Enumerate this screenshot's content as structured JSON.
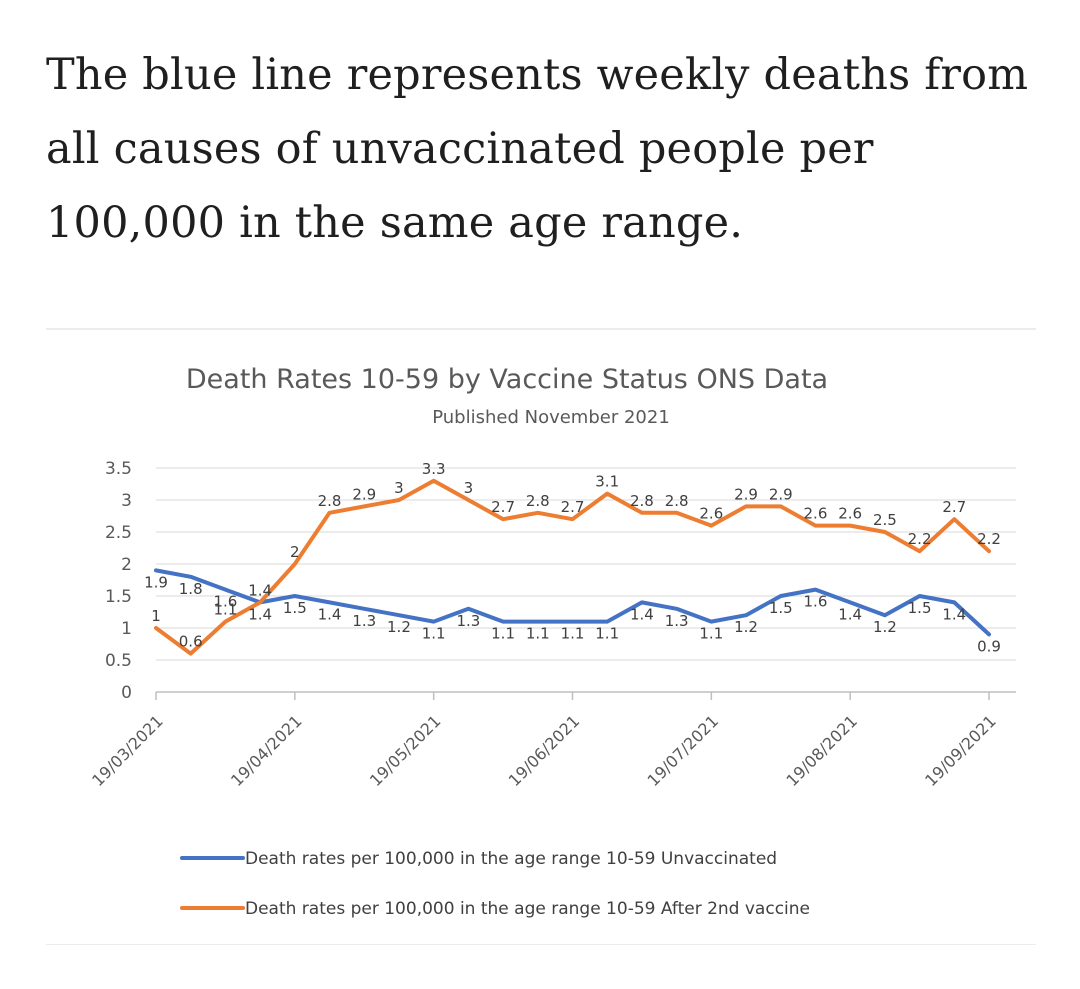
{
  "caption": "The blue line represents weekly deaths from all causes of unvaccinated people per 100,000 in the same age range.",
  "chart_data": {
    "type": "line",
    "title": "Death Rates 10-59  by Vaccine Status ONS Data",
    "subtitle": "Published November 2021",
    "xlabel": "",
    "ylabel": "",
    "ylim": [
      0,
      3.5
    ],
    "grid": true,
    "legend_position": "bottom",
    "y_ticks": [
      "0",
      "0.5",
      "1",
      "1.5",
      "2",
      "2.5",
      "3",
      "3.5"
    ],
    "x_tick_labels": [
      "19/03/2021",
      "19/04/2021",
      "19/05/2021",
      "19/06/2021",
      "19/07/2021",
      "19/08/2021",
      "19/09/2021"
    ],
    "x_tick_week_index": [
      0,
      4,
      8,
      12,
      16,
      20,
      24
    ],
    "week_count": 25,
    "series": [
      {
        "name": "Death rates per 100,000 in the age range 10-59 Unvaccinated",
        "color": "#4472c4",
        "values": [
          1.9,
          1.8,
          1.6,
          1.4,
          1.5,
          1.4,
          1.3,
          1.2,
          1.1,
          1.3,
          1.1,
          1.1,
          1.1,
          1.1,
          1.4,
          1.3,
          1.1,
          1.2,
          1.5,
          1.6,
          1.4,
          1.2,
          1.5,
          1.4,
          0.9
        ],
        "labels": [
          "1.9",
          "1.8",
          "1.6",
          "1.4",
          "1.5",
          "1.4",
          "1.3",
          "1.2",
          "1.1",
          "1.3",
          "1.1",
          "1.1",
          "1.1",
          "1.1",
          "1.4",
          "1.3",
          "1.1",
          "1.2",
          "1.5",
          "1.6",
          "1.4",
          "1.2",
          "1.5",
          "1.4",
          "0.9"
        ]
      },
      {
        "name": "Death rates per 100,000 in the age range 10-59 After 2nd  vaccine",
        "color": "#ed7d31",
        "values": [
          1,
          0.6,
          1.1,
          1.4,
          2,
          2.8,
          2.9,
          3,
          3.3,
          3,
          2.7,
          2.8,
          2.7,
          3.1,
          2.8,
          2.8,
          2.6,
          2.9,
          2.9,
          2.6,
          2.6,
          2.5,
          2.2,
          2.7,
          2.2
        ],
        "labels": [
          "1",
          "0.6",
          "1.1",
          "1.4",
          "2",
          "2.8",
          "2.9",
          "3",
          "3.3",
          "3",
          "2.7",
          "2.8",
          "2.7",
          "3.1",
          "2.8",
          "2.8",
          "2.6",
          "2.9",
          "2.9",
          "2.6",
          "2.6",
          "2.5",
          "2.2",
          "2.7",
          "2.2"
        ]
      }
    ]
  }
}
